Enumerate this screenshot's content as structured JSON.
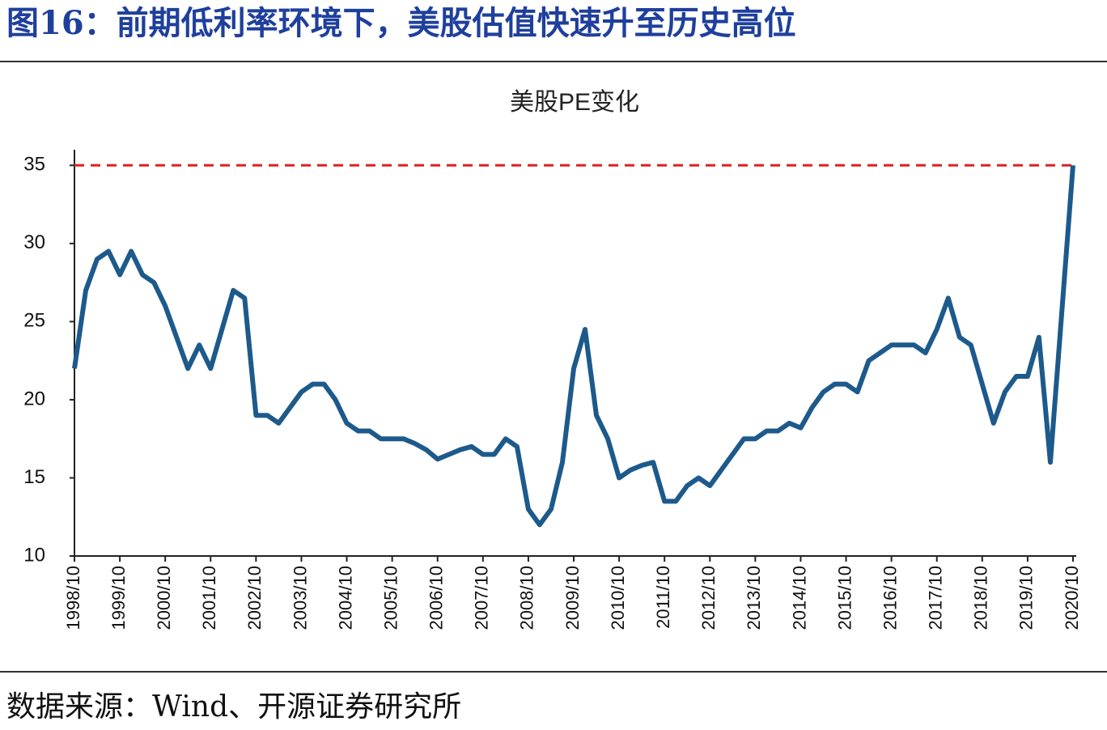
{
  "header": {
    "title": "图16：前期低利率环境下，美股估值快速升至历史高位"
  },
  "source": "数据来源：Wind、开源证券研究所",
  "chart_data": {
    "type": "line",
    "title": "美股PE变化",
    "categories": [
      "1998/10",
      null,
      null,
      null,
      "1999/10",
      null,
      null,
      null,
      "2000/10",
      null,
      null,
      null,
      "2001/10",
      null,
      null,
      null,
      "2002/10",
      null,
      null,
      null,
      "2003/10",
      null,
      null,
      null,
      "2004/10",
      null,
      null,
      null,
      "2005/10",
      null,
      null,
      null,
      "2006/10",
      null,
      null,
      null,
      "2007/10",
      null,
      null,
      null,
      "2008/10",
      null,
      null,
      null,
      "2009/10",
      null,
      null,
      null,
      "2010/10",
      null,
      null,
      null,
      "2011/10",
      null,
      null,
      null,
      "2012/10",
      null,
      null,
      null,
      "2013/10",
      null,
      null,
      null,
      "2014/10",
      null,
      null,
      null,
      "2015/10",
      null,
      null,
      null,
      "2016/10",
      null,
      null,
      null,
      "2017/10",
      null,
      null,
      null,
      "2018/10",
      null,
      null,
      null,
      "2019/10",
      null,
      null,
      null,
      "2020/10"
    ],
    "series": [
      {
        "color": "#1d5a8c",
        "values": [
          22,
          27,
          29,
          29.5,
          28,
          29.5,
          28,
          27.5,
          26,
          24,
          22,
          23.5,
          22,
          24.5,
          27,
          26.5,
          19,
          19,
          18.5,
          19.5,
          20.5,
          21,
          21,
          20,
          18.5,
          18,
          18,
          17.5,
          17.5,
          17.5,
          17.2,
          16.8,
          16.2,
          16.5,
          16.8,
          17,
          16.5,
          16.5,
          17.5,
          17,
          13,
          12,
          13,
          16,
          22,
          24.5,
          19,
          17.5,
          15,
          15.5,
          15.8,
          16,
          13.5,
          13.5,
          14.5,
          15,
          14.5,
          15.5,
          16.5,
          17.5,
          17.5,
          18,
          18,
          18.5,
          18.2,
          19.5,
          20.5,
          21,
          21,
          20.5,
          22.5,
          23,
          23.5,
          23.5,
          23.5,
          23,
          24.5,
          26.5,
          24,
          23.5,
          21,
          18.5,
          20.5,
          21.5,
          21.5,
          24,
          16,
          25.5,
          35
        ]
      }
    ],
    "ylim": [
      10,
      36
    ],
    "yticks": [
      10,
      15,
      20,
      25,
      30,
      35
    ],
    "reference_line": {
      "value": 35,
      "color": "#e02020"
    }
  }
}
